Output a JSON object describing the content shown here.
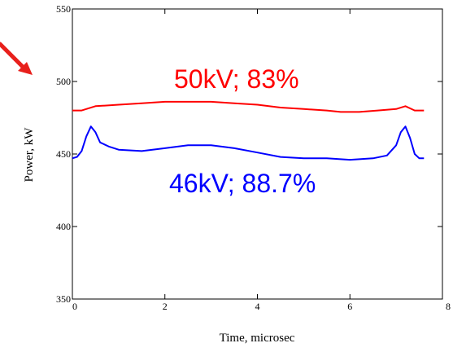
{
  "chart_data": {
    "type": "line",
    "xlabel": "Time, microsec",
    "ylabel": "Power, kW",
    "xlim": [
      0,
      8
    ],
    "ylim": [
      350,
      550
    ],
    "xticks": [
      0,
      2,
      4,
      6,
      8
    ],
    "yticks": [
      350,
      400,
      450,
      500,
      550
    ],
    "grid": false,
    "series": [
      {
        "color": "#ff0000",
        "x": [
          0,
          0.2,
          0.5,
          1.0,
          1.5,
          2.0,
          2.5,
          3.0,
          3.5,
          4.0,
          4.5,
          5.0,
          5.5,
          5.8,
          6.2,
          6.6,
          7.0,
          7.2,
          7.4,
          7.6
        ],
        "y": [
          480,
          480,
          483,
          484,
          485,
          486,
          486,
          486,
          485,
          484,
          482,
          481,
          480,
          479,
          479,
          480,
          481,
          483,
          480,
          480
        ]
      },
      {
        "color": "#0000ff",
        "x": [
          0,
          0.1,
          0.2,
          0.3,
          0.4,
          0.5,
          0.6,
          0.8,
          1.0,
          1.5,
          2.0,
          2.5,
          3.0,
          3.5,
          4.0,
          4.5,
          5.0,
          5.5,
          6.0,
          6.5,
          6.8,
          7.0,
          7.1,
          7.2,
          7.3,
          7.4,
          7.5,
          7.6
        ],
        "y": [
          447,
          448,
          452,
          462,
          469,
          465,
          458,
          455,
          453,
          452,
          454,
          456,
          456,
          454,
          451,
          448,
          447,
          447,
          446,
          447,
          449,
          456,
          465,
          469,
          461,
          450,
          447,
          447
        ]
      }
    ],
    "annotations": [
      {
        "text": "50kV; 83%",
        "color": "#ff0000"
      },
      {
        "text": "46kV; 88.7%",
        "color": "#0000ff"
      }
    ]
  },
  "pointer_arrow_color": "#e8201c"
}
